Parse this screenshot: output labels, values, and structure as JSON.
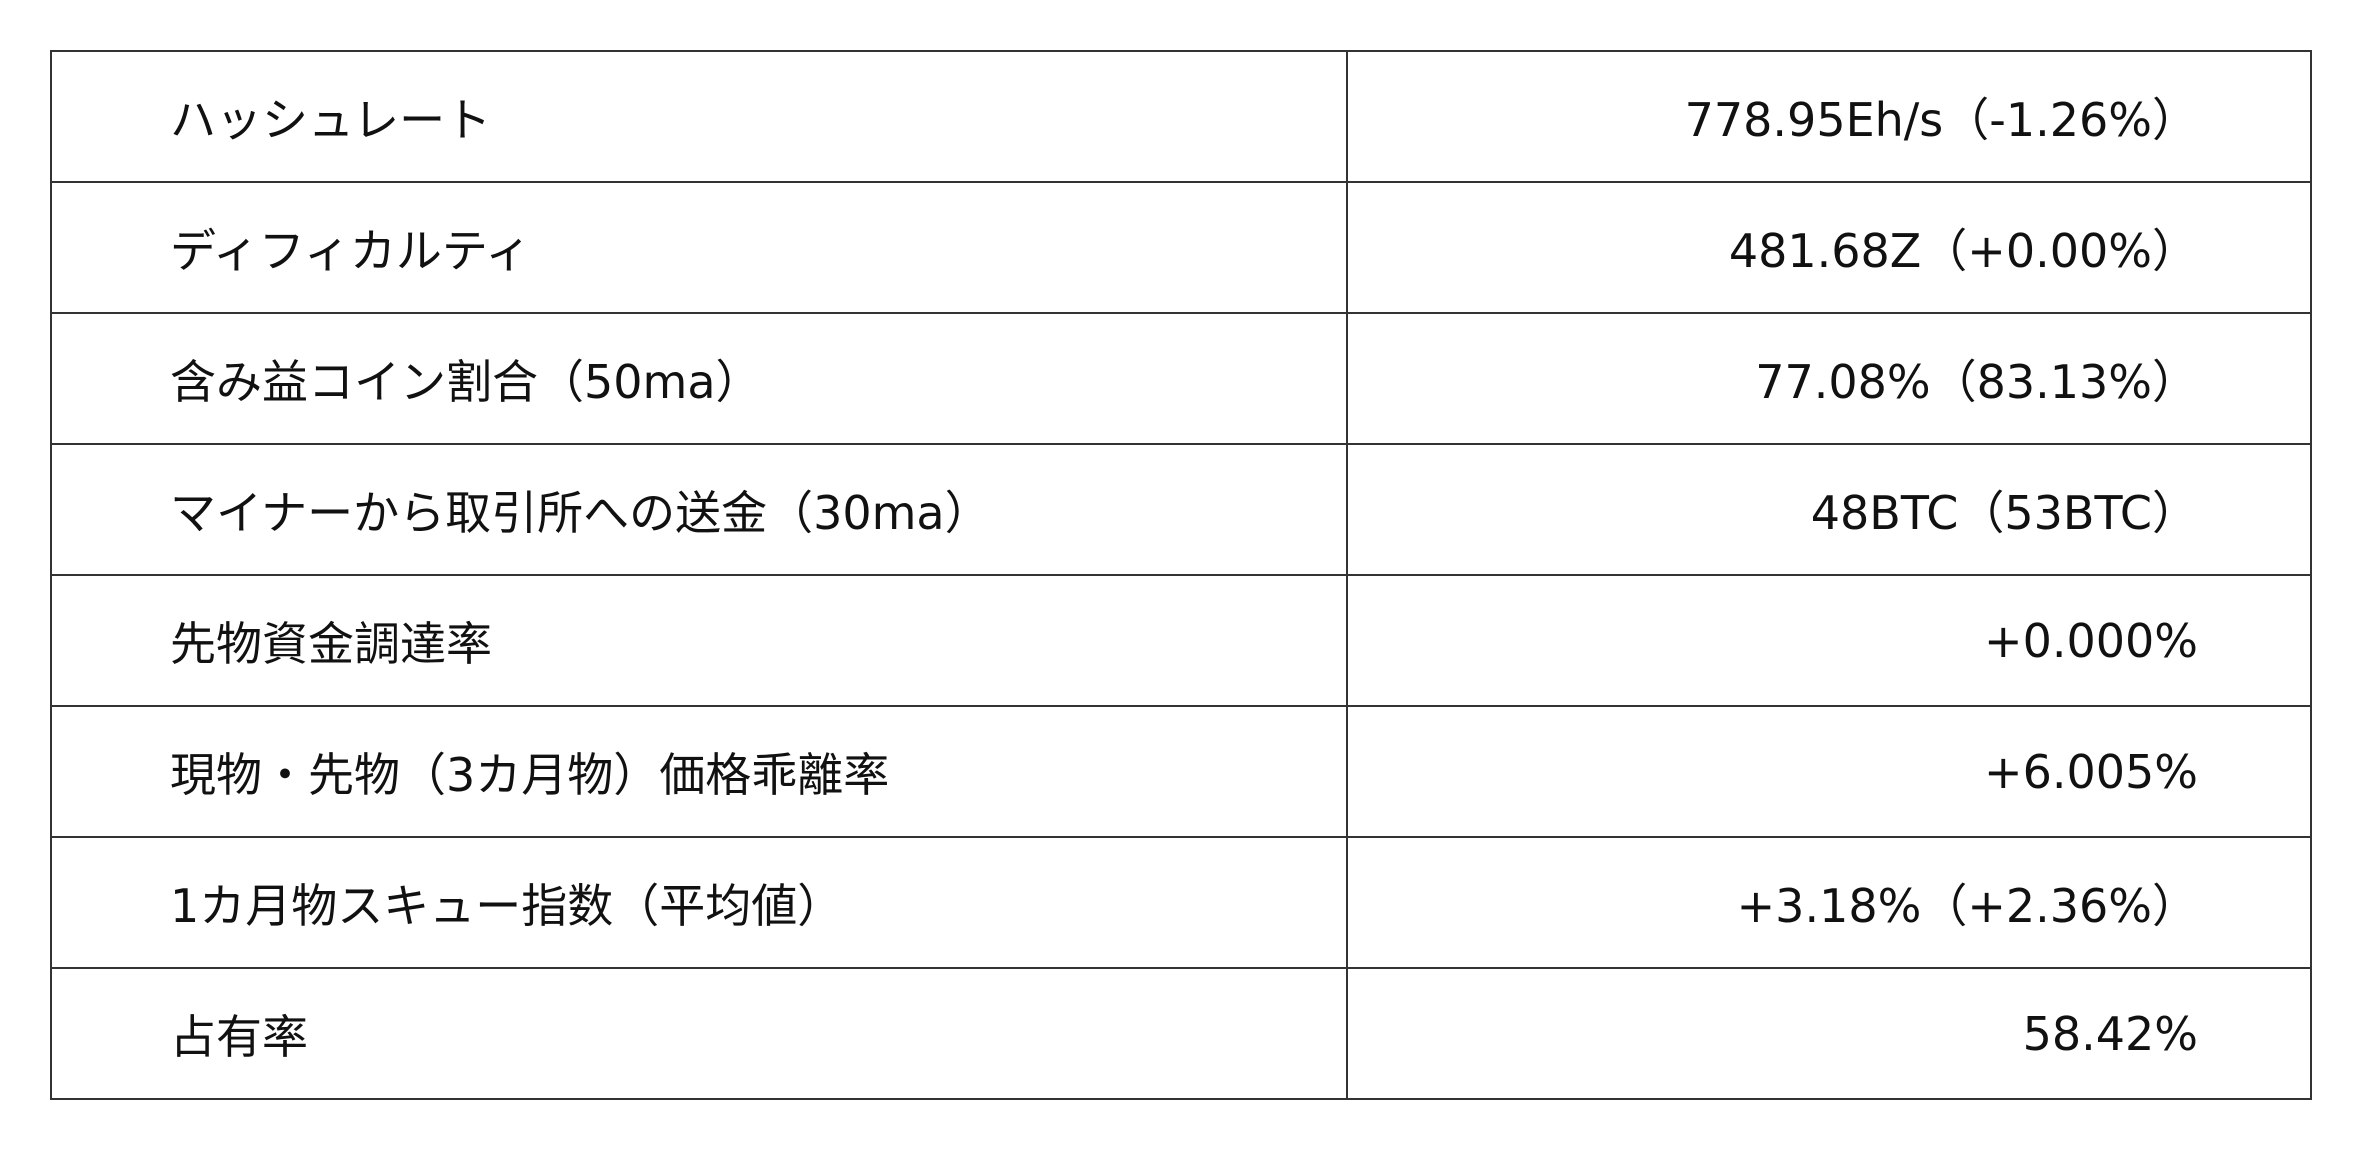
{
  "rows": [
    {
      "label": "ハッシュレート",
      "value": "778.95Eh/s（-1.26%）"
    },
    {
      "label": "ディフィカルティ",
      "value": "481.68Z（+0.00%）"
    },
    {
      "label": "含み益コイン割合（50ma）",
      "value": "77.08%（83.13%）"
    },
    {
      "label": "マイナーから取引所への送金（30ma）",
      "value": "48BTC（53BTC）"
    },
    {
      "label": "先物資金調達率",
      "value": "+0.000%"
    },
    {
      "label": "現物・先物（3カ月物）価格乖離率",
      "value": "+6.005%"
    },
    {
      "label": "1カ月物スキュー指数（平均値）",
      "value": "+3.18%（+2.36%）"
    },
    {
      "label": "占有率",
      "value": "58.42%"
    }
  ]
}
